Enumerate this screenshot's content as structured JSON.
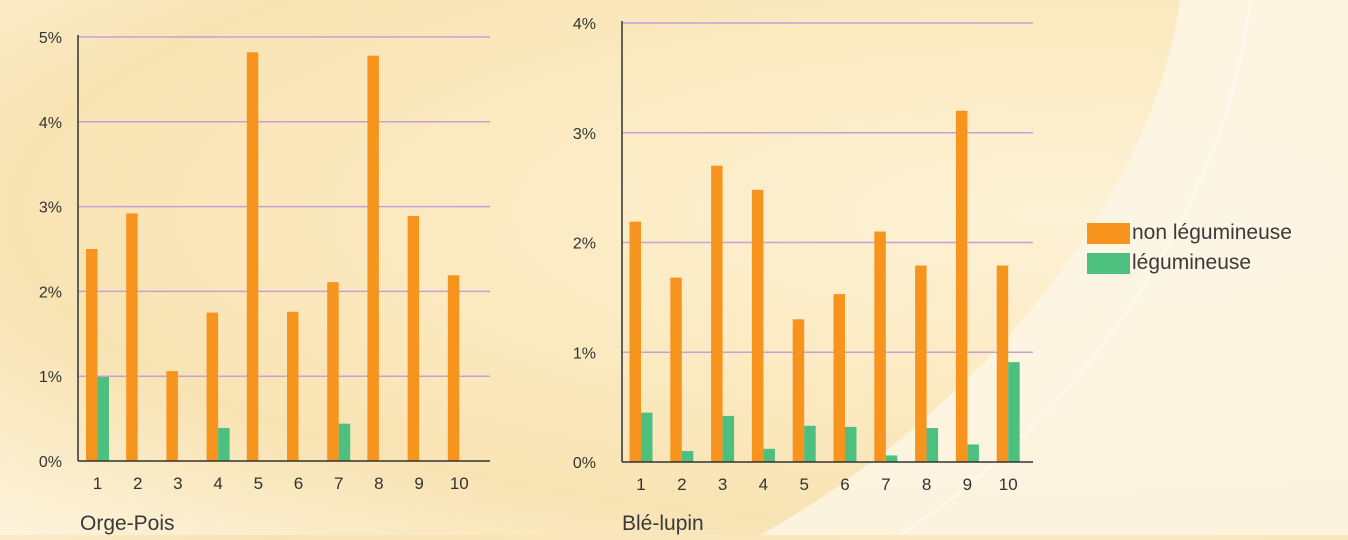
{
  "colors": {
    "non_legumineuse": "#f7941d",
    "legumineuse": "#4dbf7f",
    "gridline": "#c9a0d6",
    "axis": "#333333"
  },
  "legend": [
    {
      "label": "non légumineuse",
      "color": "#f7941d"
    },
    {
      "label": "légumineuse",
      "color": "#4dbf7f"
    }
  ],
  "chart_data": [
    {
      "type": "bar",
      "title": "Orge-Pois",
      "categories": [
        "1",
        "2",
        "3",
        "4",
        "5",
        "6",
        "7",
        "8",
        "9",
        "10"
      ],
      "series": [
        {
          "name": "non légumineuse",
          "values": [
            2.5,
            2.92,
            1.06,
            1.75,
            4.82,
            1.76,
            2.11,
            4.78,
            2.89,
            2.19
          ]
        },
        {
          "name": "légumineuse",
          "values": [
            0.99,
            0,
            0,
            0.39,
            0,
            0,
            0.44,
            0,
            0,
            0
          ]
        }
      ],
      "yticks": [
        "0%",
        "1%",
        "2%",
        "3%",
        "4%",
        "5%"
      ],
      "ylim": [
        0,
        5
      ],
      "grid": true
    },
    {
      "type": "bar",
      "title": "Blé-lupin",
      "categories": [
        "1",
        "2",
        "3",
        "4",
        "5",
        "6",
        "7",
        "8",
        "9",
        "10"
      ],
      "series": [
        {
          "name": "non légumineuse",
          "values": [
            2.19,
            1.68,
            2.7,
            2.48,
            1.3,
            1.53,
            2.1,
            1.79,
            3.2,
            1.79
          ]
        },
        {
          "name": "légumineuse",
          "values": [
            0.45,
            0.1,
            0.42,
            0.12,
            0.33,
            0.32,
            0.06,
            0.31,
            0.16,
            0.91
          ]
        }
      ],
      "yticks": [
        "0%",
        "1%",
        "2%",
        "3%",
        "4%"
      ],
      "ylim": [
        0,
        4
      ],
      "grid": true
    }
  ]
}
